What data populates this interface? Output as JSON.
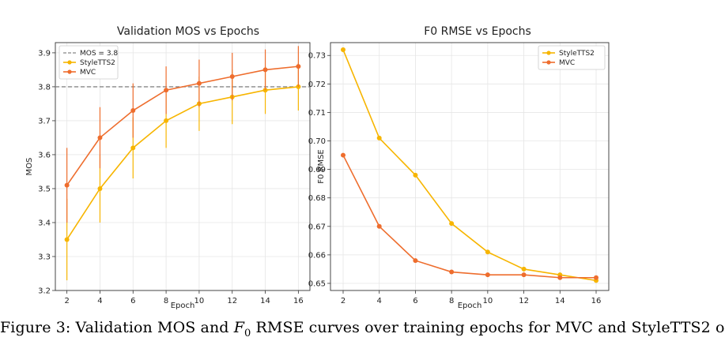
{
  "caption": {
    "prefix": "Figure 3: Validation MOS and ",
    "f0_symbol": "F",
    "f0_subscript": "0",
    "suffix": " RMSE curves over training epochs for MVC and StyleTTS2 o"
  },
  "colors": {
    "styletts2": "#f7b500",
    "mvc": "#ee6d2d",
    "reference": "#888888",
    "grid": "#e6e6e6"
  },
  "chart_data": [
    {
      "type": "line",
      "title": "Validation MOS vs Epochs",
      "xlabel": "Epoch",
      "ylabel": "MOS",
      "x": [
        2,
        4,
        6,
        8,
        10,
        12,
        14,
        16
      ],
      "xlim": [
        1.3,
        16.7
      ],
      "ylim": [
        3.2,
        3.93
      ],
      "xticks": [
        "2",
        "4",
        "6",
        "8",
        "10",
        "12",
        "14",
        "16"
      ],
      "yticks": [
        "3.2",
        "3.3",
        "3.4",
        "3.5",
        "3.6",
        "3.7",
        "3.8",
        "3.9"
      ],
      "grid": true,
      "legend_position": "top-left",
      "reference_line": {
        "label": "MOS = 3.8",
        "y": 3.8
      },
      "series": [
        {
          "name": "StyleTTS2",
          "values": [
            3.35,
            3.5,
            3.62,
            3.7,
            3.75,
            3.77,
            3.79,
            3.8
          ],
          "error": [
            0.12,
            0.1,
            0.09,
            0.08,
            0.08,
            0.08,
            0.07,
            0.07
          ]
        },
        {
          "name": "MVC",
          "values": [
            3.51,
            3.65,
            3.73,
            3.79,
            3.81,
            3.83,
            3.85,
            3.86
          ],
          "error": [
            0.11,
            0.09,
            0.08,
            0.07,
            0.07,
            0.07,
            0.06,
            0.06
          ]
        }
      ]
    },
    {
      "type": "line",
      "title": "F0 RMSE vs Epochs",
      "xlabel": "Epoch",
      "ylabel": "F0 RMSE",
      "x": [
        2,
        4,
        6,
        8,
        10,
        12,
        14,
        16
      ],
      "xlim": [
        1.3,
        16.7
      ],
      "ylim": [
        0.6475,
        0.7345
      ],
      "xticks": [
        "2",
        "4",
        "6",
        "8",
        "10",
        "12",
        "14",
        "16"
      ],
      "yticks": [
        "0.65",
        "0.66",
        "0.67",
        "0.68",
        "0.69",
        "0.70",
        "0.71",
        "0.72",
        "0.73"
      ],
      "grid": true,
      "legend_position": "top-right",
      "series": [
        {
          "name": "StyleTTS2",
          "values": [
            0.732,
            0.701,
            0.688,
            0.671,
            0.661,
            0.655,
            0.653,
            0.651
          ]
        },
        {
          "name": "MVC",
          "values": [
            0.695,
            0.67,
            0.658,
            0.654,
            0.653,
            0.653,
            0.652,
            0.652
          ]
        }
      ]
    }
  ]
}
